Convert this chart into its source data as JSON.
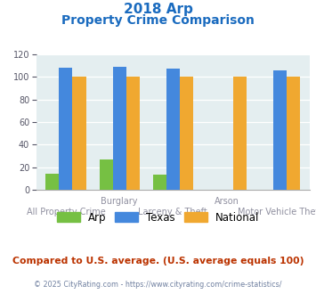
{
  "title_line1": "2018 Arp",
  "title_line2": "Property Crime Comparison",
  "categories": [
    "All Property Crime",
    "Burglary",
    "Larceny & Theft",
    "Arson",
    "Motor Vehicle Theft"
  ],
  "arp_values": [
    14,
    27,
    13,
    0,
    0
  ],
  "texas_values": [
    108,
    109,
    107,
    0,
    106
  ],
  "national_values": [
    100,
    100,
    100,
    100,
    100
  ],
  "arp_color": "#76c043",
  "texas_color": "#4488dd",
  "national_color": "#f0a830",
  "bg_color": "#e4eef0",
  "ylim": [
    0,
    120
  ],
  "yticks": [
    0,
    20,
    40,
    60,
    80,
    100,
    120
  ],
  "group_labels_top": [
    "",
    "Burglary",
    "",
    "Arson",
    ""
  ],
  "group_labels_bot": [
    "All Property Crime",
    "",
    "Larceny & Theft",
    "",
    "Motor Vehicle Theft"
  ],
  "footnote1": "Compared to U.S. average. (U.S. average equals 100)",
  "footnote2": "© 2025 CityRating.com - https://www.cityrating.com/crime-statistics/",
  "title_color": "#1a6bbf",
  "xlabel_color": "#9090a0",
  "footnote1_color": "#bb3300",
  "footnote2_color": "#7080a0",
  "legend_labels": [
    "Arp",
    "Texas",
    "National"
  ]
}
